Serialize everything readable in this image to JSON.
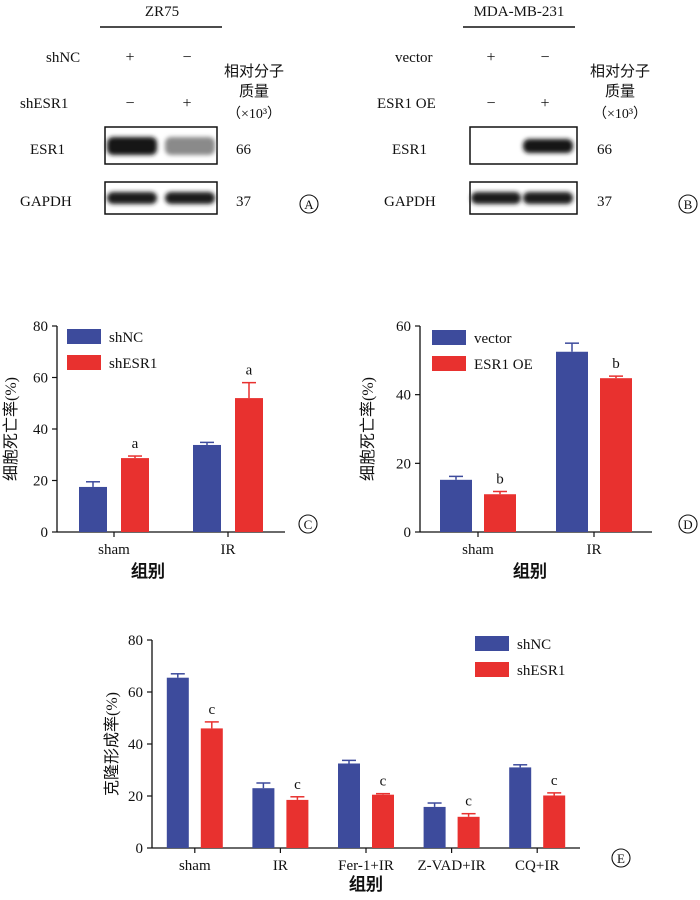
{
  "panelA": {
    "title": "ZR75",
    "rows": [
      {
        "name": "shNC",
        "signs": [
          "+",
          "−"
        ]
      },
      {
        "name": "shESR1",
        "signs": [
          "−",
          "+"
        ]
      }
    ],
    "mw_header": [
      "相对分子",
      "质量",
      "（×10³）"
    ],
    "blots": [
      {
        "label": "ESR1",
        "mw": "66",
        "intensity": [
          1.0,
          0.45
        ]
      },
      {
        "label": "GAPDH",
        "mw": "37",
        "intensity": [
          0.95,
          0.95
        ]
      }
    ],
    "letter": "A"
  },
  "panelB": {
    "title": "MDA-MB-231",
    "rows": [
      {
        "name": "vector",
        "signs": [
          "+",
          "−"
        ]
      },
      {
        "name": "ESR1 OE",
        "signs": [
          "−",
          "+"
        ]
      }
    ],
    "mw_header": [
      "相对分子",
      "质量",
      "（×10³）"
    ],
    "blots": [
      {
        "label": "ESR1",
        "mw": "66",
        "intensity": [
          0.0,
          1.0
        ]
      },
      {
        "label": "GAPDH",
        "mw": "37",
        "intensity": [
          0.95,
          0.95
        ]
      }
    ],
    "letter": "B"
  },
  "chart_data": [
    {
      "id": "C",
      "type": "bar",
      "categories": [
        "sham",
        "IR"
      ],
      "series": [
        {
          "name": "shNC",
          "color": "#3d4b9c",
          "values": [
            17.5,
            33.8
          ],
          "errors": [
            2.0,
            1.0
          ],
          "sig": [
            "",
            ""
          ]
        },
        {
          "name": "shESR1",
          "color": "#e8312f",
          "values": [
            28.7,
            52.0
          ],
          "errors": [
            0.8,
            6.0
          ],
          "sig": [
            "a",
            "a"
          ]
        }
      ],
      "xlabel": "组别",
      "ylabel": "细胞死亡率(%)",
      "ylim": [
        0,
        80
      ],
      "yticks": [
        0,
        20,
        40,
        60,
        80
      ],
      "legend": "top-left",
      "grid": false,
      "letter": "C"
    },
    {
      "id": "D",
      "type": "bar",
      "categories": [
        "sham",
        "IR"
      ],
      "series": [
        {
          "name": "vector",
          "color": "#3d4b9c",
          "values": [
            15.2,
            52.5
          ],
          "errors": [
            1.0,
            2.5
          ],
          "sig": [
            "",
            ""
          ]
        },
        {
          "name": "ESR1 OE",
          "color": "#e8312f",
          "values": [
            11.0,
            44.8
          ],
          "errors": [
            0.8,
            0.6
          ],
          "sig": [
            "b",
            "b"
          ]
        }
      ],
      "xlabel": "组别",
      "ylabel": "细胞死亡率(%)",
      "ylim": [
        0,
        60
      ],
      "yticks": [
        0,
        20,
        40,
        60
      ],
      "legend": "top-left",
      "grid": false,
      "letter": "D"
    },
    {
      "id": "E",
      "type": "bar",
      "categories": [
        "sham",
        "IR",
        "Fer-1+IR",
        "Z-VAD+IR",
        "CQ+IR"
      ],
      "series": [
        {
          "name": "shNC",
          "color": "#3d4b9c",
          "values": [
            65.5,
            23.0,
            32.5,
            15.8,
            31.0
          ],
          "errors": [
            1.5,
            2.0,
            1.2,
            1.5,
            1.0
          ],
          "sig": [
            "",
            "",
            "",
            "",
            ""
          ]
        },
        {
          "name": "shESR1",
          "color": "#e8312f",
          "values": [
            46.0,
            18.5,
            20.5,
            12.0,
            20.2
          ],
          "errors": [
            2.5,
            1.2,
            0.4,
            1.2,
            1.0
          ],
          "sig": [
            "c",
            "c",
            "c",
            "c",
            "c"
          ]
        }
      ],
      "xlabel": "组别",
      "ylabel": "克隆形成率(%)",
      "ylim": [
        0,
        80
      ],
      "yticks": [
        0,
        20,
        40,
        60,
        80
      ],
      "legend": "top-right",
      "grid": false,
      "letter": "E"
    }
  ]
}
